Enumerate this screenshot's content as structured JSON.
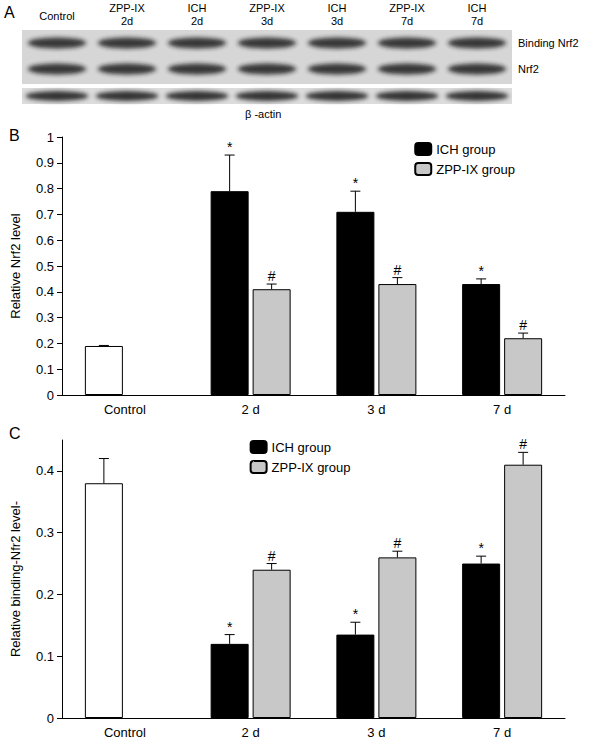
{
  "blot": {
    "title": "A",
    "lanes": [
      "Control",
      "ZPP-IX 2d",
      "ICH 2d",
      "ZPP-IX 3d",
      "ICH 3d",
      "ZPP-IX 7d",
      "ICH 7d"
    ],
    "bands": [
      "Binding Nrf2",
      "Nrf2"
    ],
    "loading_control": "β -actin"
  },
  "chart_data": [
    {
      "type": "bar",
      "title": "B",
      "y_label": "Relative Nrf2 level",
      "categories": [
        "Control",
        "2 d",
        "3 d",
        "7 d"
      ],
      "series": [
        {
          "name": "ICH group",
          "color": "#000000",
          "colors": [
            "#ffffff",
            "#000000",
            "#000000",
            "#000000"
          ],
          "values": [
            0.19,
            0.79,
            0.71,
            0.43
          ],
          "errors": [
            0.002,
            0.14,
            0.08,
            0.02
          ],
          "annotations": [
            null,
            "*",
            "*",
            "*"
          ]
        },
        {
          "name": "ZPP-IX group",
          "color": "#c8c8c8",
          "values": [
            null,
            0.41,
            0.43,
            0.22
          ],
          "errors": [
            null,
            0.02,
            0.025,
            0.02
          ],
          "annotations": [
            null,
            "#",
            "#",
            "#"
          ]
        }
      ],
      "ylim": [
        0,
        1
      ],
      "yticks": [
        0,
        0.1,
        0.2,
        0.3,
        0.4,
        0.5,
        0.6,
        0.7,
        0.8,
        0.9,
        1
      ],
      "grid": false,
      "legend": "upper right"
    },
    {
      "type": "bar",
      "title": "C",
      "y_label": "Relative binding-Nfr2 level-",
      "categories": [
        "Control",
        "2 d",
        "3 d",
        "7 d"
      ],
      "series": [
        {
          "name": "ICH group",
          "color": "#000000",
          "colors": [
            "#ffffff",
            "#000000",
            "#000000",
            "#000000"
          ],
          "values": [
            0.38,
            0.12,
            0.135,
            0.25
          ],
          "errors": [
            0.04,
            0.015,
            0.02,
            0.012
          ],
          "annotations": [
            null,
            "*",
            "*",
            "*"
          ]
        },
        {
          "name": "ZPP-IX group",
          "color": "#c8c8c8",
          "values": [
            null,
            0.24,
            0.26,
            0.41
          ],
          "errors": [
            null,
            0.01,
            0.01,
            0.02
          ],
          "annotations": [
            null,
            "#",
            "#",
            "#"
          ]
        }
      ],
      "ylim": [
        0,
        0.45
      ],
      "yticks": [
        0,
        0.1,
        0.2,
        0.3,
        0.4
      ],
      "grid": false,
      "legend": "upper center"
    }
  ]
}
